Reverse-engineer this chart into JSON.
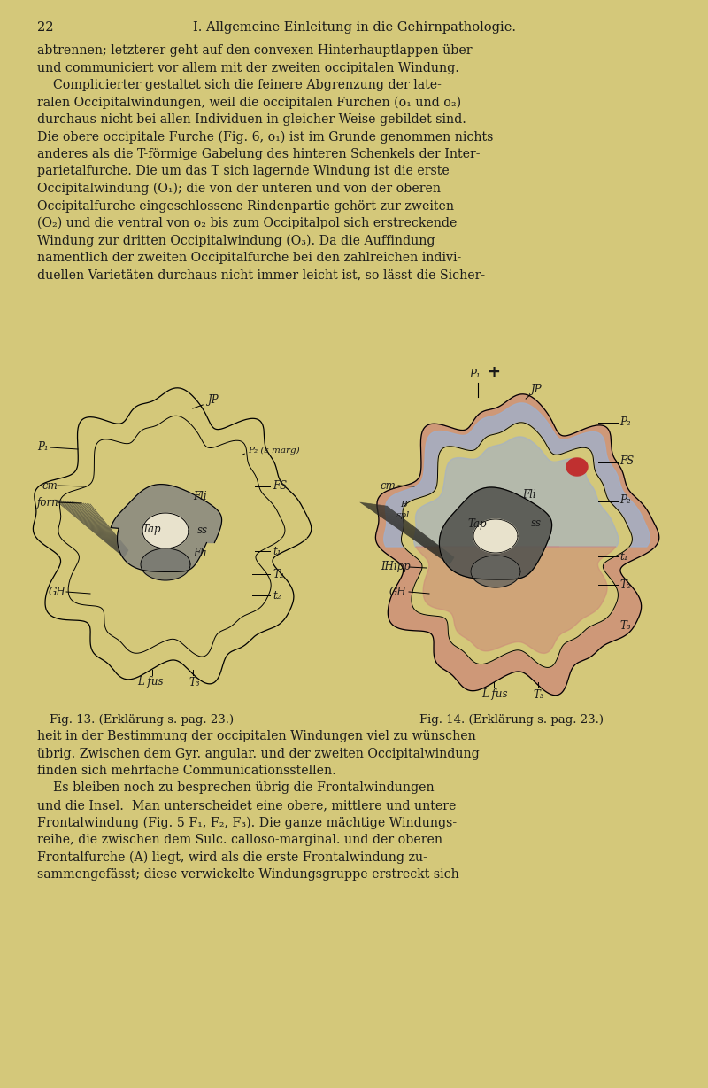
{
  "background_color": "#d4c87a",
  "text_color": "#1a1a1a",
  "fig_width": 8.0,
  "fig_height": 12.28,
  "font_family": "serif",
  "page_number": "22",
  "title_line": "I. Allgemeine Einleitung in die Gehirnpathologie.",
  "fig13_caption": "Fig. 13. (Erklärung s. pag. 23.)",
  "fig14_caption": "Fig. 14. (Erklärung s. pag. 23.)",
  "body_text_lines": [
    [
      "abtrennen; letzterer geht auf den convexen Hinterhauptlappen über",
      false
    ],
    [
      "und communiciert vor allem mit der zweiten occipitalen Windung.",
      false
    ],
    [
      "    Complicierter gestaltet sich die feinere Abgrenzung der late-",
      false
    ],
    [
      "ralen Occipitalwindungen, weil die occipitalen Furchen (o₁ und o₂)",
      true
    ],
    [
      "durchaus nicht bei allen Individuen in gleicher Weise gebildet sind.",
      false
    ],
    [
      "Die obere occipitale Furche (Fig. 6, o₁) ist im Grunde genommen nichts",
      false
    ],
    [
      "anderes als die T-förmige Gabelung des hinteren Schenkels der Inter-",
      false
    ],
    [
      "parietalfurche. Die um das T sich lagernde Windung ist die erste",
      false
    ],
    [
      "Occipitalwindung (O₁); die von der unteren und von der oberen",
      true
    ],
    [
      "Occipitalfurche eingeschlossene Rindenpartie gehört zur zweiten",
      true
    ],
    [
      "(O₂) und die ventral von o₂ bis zum Occipitalpol sich erstreckende",
      false
    ],
    [
      "Windung zur dritten Occipitalwindung (O₃). Da die Auffindung",
      true
    ],
    [
      "namentlich der zweiten Occipitalfurche bei den zahlreichen indivi-",
      false
    ],
    [
      "duellen Varietäten durchaus nicht immer leicht ist, so lässt die Sicher-",
      false
    ]
  ],
  "bottom_text_lines": [
    [
      "heit in der Bestimmung der occipitalen Windungen viel zu wünschen",
      false
    ],
    [
      "übrig. Zwischen dem Gyr. angular. und der zweiten Occipitalwindung",
      false
    ],
    [
      "finden sich mehrfache Communicationsstellen.",
      false
    ],
    [
      "    Es bleiben noch zu besprechen übrig die Frontalwindungen",
      true
    ],
    [
      "und die Insel.  Man unterscheidet eine obere, mittlere und untere",
      true
    ],
    [
      "Frontalwindung (Fig. 5 F₁, F₂, F₃). Die ganze mächtige Windungs-",
      false
    ],
    [
      "reihe, die zwischen dem Sulc. calloso-marginal. und der oberen",
      true
    ],
    [
      "Frontalfurche (A) liegt, wird als die erste Frontalwindung zu-",
      true
    ],
    [
      "sammengefässt; diese verwickelte Windungsgruppe erstreckt sich",
      false
    ]
  ],
  "blue_color": "#a0b0cc",
  "red_color": "#cc8878",
  "dark_gray": "#555550",
  "med_gray": "#888880",
  "light_tan": "#e8e2cc"
}
